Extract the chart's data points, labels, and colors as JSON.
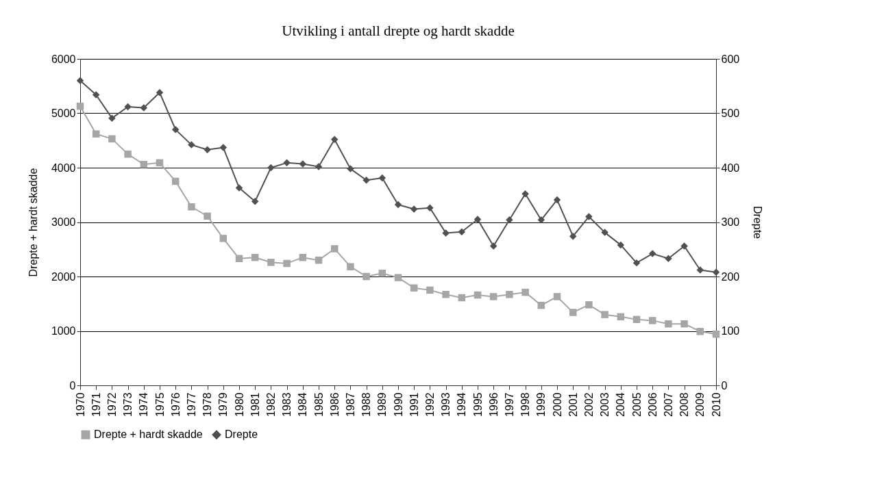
{
  "chart_data": {
    "type": "line",
    "title": "Utvikling i antall drepte og hardt skadde",
    "ylabel": "Drepte + hardt skadde",
    "y2label": "Drepte",
    "categories": [
      "1970",
      "1971",
      "1972",
      "1973",
      "1974",
      "1975",
      "1976",
      "1977",
      "1978",
      "1979",
      "1980",
      "1981",
      "1982",
      "1983",
      "1984",
      "1985",
      "1986",
      "1987",
      "1988",
      "1989",
      "1990",
      "1991",
      "1992",
      "1993",
      "1994",
      "1995",
      "1996",
      "1997",
      "1998",
      "1999",
      "2000",
      "2001",
      "2002",
      "2003",
      "2004",
      "2005",
      "2006",
      "2007",
      "2008",
      "2009",
      "2010"
    ],
    "series": [
      {
        "name": "Drepte + hardt skadde",
        "color": "#a6a6a6",
        "marker": "square",
        "values": [
          5130,
          4620,
          4530,
          4250,
          4060,
          4090,
          3750,
          3280,
          3110,
          2700,
          2330,
          2350,
          2260,
          2240,
          2350,
          2300,
          2510,
          2180,
          2000,
          2060,
          1980,
          1790,
          1750,
          1670,
          1610,
          1660,
          1630,
          1670,
          1710,
          1470,
          1630,
          1340,
          1480,
          1300,
          1260,
          1210,
          1190,
          1130,
          1130,
          990,
          940
        ]
      },
      {
        "name": "Drepte",
        "color": "#505050",
        "marker": "diamond",
        "axis": "y2",
        "values": [
          560,
          534,
          491,
          512,
          510,
          538,
          470,
          442,
          433,
          437,
          363,
          338,
          400,
          409,
          407,
          402,
          452,
          398,
          377,
          381,
          332,
          324,
          326,
          280,
          282,
          305,
          256,
          304,
          352,
          304,
          341,
          274,
          310,
          281,
          258,
          225,
          242,
          233,
          256,
          212,
          208
        ]
      }
    ],
    "ylim": [
      0,
      6000
    ],
    "yticks": [
      0,
      1000,
      2000,
      3000,
      4000,
      5000,
      6000
    ],
    "y2lim": [
      0,
      600
    ],
    "y2ticks": [
      0,
      100,
      200,
      300,
      400,
      500,
      600
    ],
    "grid": "y",
    "legend": "bottom",
    "line_style": "solid"
  }
}
